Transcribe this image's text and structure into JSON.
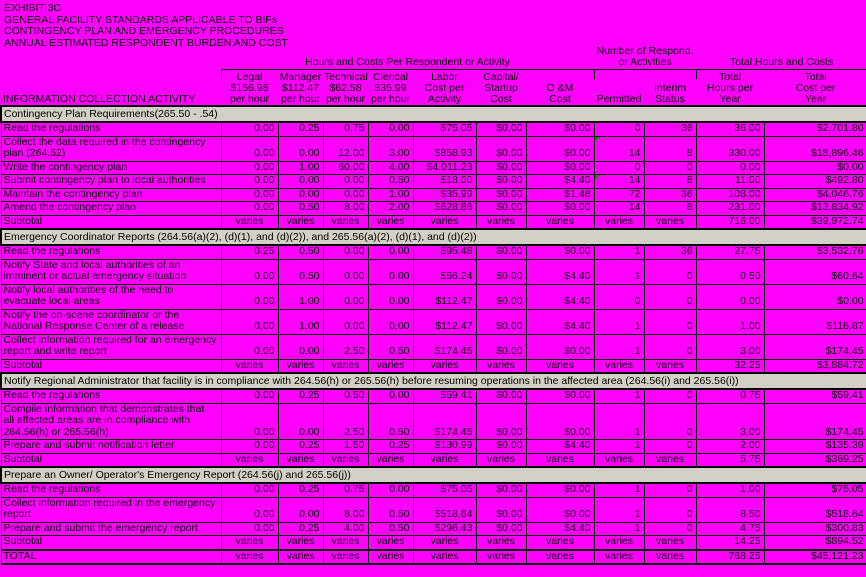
{
  "title_lines": [
    "EXHIBIT 3C",
    "GENERAL FACILITY STANDARDS APPLICABLE TO BIFs",
    "CONTINGENCY PLAN AND EMERGENCY PROCEDURES",
    "ANNUAL ESTIMATED RESPONDENT BURDEN AND COST"
  ],
  "table": {
    "row_label_header": "INFORMATION COLLECTION ACTIVITY",
    "group_headers": [
      {
        "line1": "Hours and Costs Per Respondent or Activity",
        "line2": ""
      },
      {
        "line1": "Number of Respond.",
        "line2": "or Activities"
      },
      {
        "line1": "Total Hours and Costs",
        "line2": ""
      }
    ],
    "columns": [
      {
        "lines": [
          "Legal",
          "$156.98",
          "per hour"
        ]
      },
      {
        "lines": [
          "Manager",
          "$112.47",
          "per hour"
        ]
      },
      {
        "lines": [
          "Technical",
          "$62.58",
          "per hour"
        ]
      },
      {
        "lines": [
          "Clerical",
          "$35.99",
          "per hour"
        ]
      },
      {
        "lines": [
          "Labor",
          "Cost per",
          "Activity"
        ]
      },
      {
        "lines": [
          "Capital/",
          "Startup",
          "Cost"
        ]
      },
      {
        "lines": [
          "O &M",
          "Cost"
        ]
      },
      {
        "lines": [
          "Permitted"
        ]
      },
      {
        "lines": [
          "Interim",
          "Status"
        ]
      },
      {
        "lines": [
          "Total",
          "Hours per",
          "Year"
        ]
      },
      {
        "lines": [
          "Total",
          "Cost per",
          "Year"
        ]
      }
    ],
    "sections": [
      {
        "header": "Contingency Plan Requirements(265.50 - .54)",
        "rows": [
          {
            "label": "Read the regulations",
            "values": [
              "0.00",
              "0.25",
              "0.75",
              "0.00",
              "$75.05",
              "$0.00",
              "$0.00",
              "0",
              "36",
              "36.00",
              "$2,701.80"
            ]
          },
          {
            "label": "Collect the data required in the contingency plan (264.52)",
            "flag_col": 7,
            "values": [
              "0.00",
              "0.00",
              "12.00",
              "3.00",
              "$858.93",
              "$0.00",
              "$0.00",
              "14",
              "8",
              "330.00",
              "$18,896.46"
            ]
          },
          {
            "label": "Write the contingency plan",
            "values": [
              "0.00",
              "1.00",
              "60.00",
              "4.00",
              "$4,011.23",
              "$0.00",
              "$0.00",
              "0",
              "0",
              "0.00",
              "$0.00"
            ]
          },
          {
            "label": "Submit contingency plan to local authorities",
            "flag_col": 7,
            "values": [
              "0.00",
              "0.00",
              "0.00",
              "0.50",
              "$18.00",
              "$0.00",
              "$4.40",
              "14",
              "8",
              "11.00",
              "$492.80"
            ]
          },
          {
            "label": "Maintain the contingency plan",
            "values": [
              "0.00",
              "0.00",
              "0.00",
              "1.00",
              "$35.99",
              "$0.00",
              "$1.48",
              "72",
              "36",
              "108.00",
              "$4,046.76"
            ]
          },
          {
            "label": "Amend the contingency plan",
            "values": [
              "0.00",
              "0.50",
              "8.00",
              "2.00",
              "$628.86",
              "$0.00",
              "$0.00",
              "14",
              "8",
              "231.00",
              "$13,834.92"
            ]
          },
          {
            "label": "Subtotal",
            "kind": "sum",
            "values": [
              "varies",
              "varies",
              "varies",
              "varies",
              "varies",
              "varies",
              "varies",
              "varies",
              "varies",
              "716.00",
              "$39,972.74"
            ]
          }
        ]
      },
      {
        "header": "Emergency Coordinator Reports (264.56(a)(2), (d)(1), and (d)(2)), and 265.56(a)(2), (d)(1), and (d)(2))",
        "rows": [
          {
            "label": "Read the regulations",
            "values": [
              "0.25",
              "0.50",
              "0.00",
              "0.00",
              "$95.48",
              "$0.00",
              "$0.00",
              "1",
              "36",
              "27.75",
              "$3,532.76"
            ]
          },
          {
            "label": "Notify State and local authorities of an imminent or actual emergency situation",
            "values": [
              "0.00",
              "0.50",
              "0.00",
              "0.00",
              "$56.24",
              "$0.00",
              "$4.40",
              "1",
              "0",
              "0.50",
              "$60.64"
            ]
          },
          {
            "label": "Notify local authorities of the need to evacuate local areas",
            "values": [
              "0.00",
              "1.00",
              "0.00",
              "0.00",
              "$112.47",
              "$0.00",
              "$4.40",
              "0",
              "0",
              "0.00",
              "$0.00"
            ]
          },
          {
            "label": "Notify the on-scene coordinator or the National Response Center of a release",
            "values": [
              "0.00",
              "1.00",
              "0.00",
              "0.00",
              "$112.47",
              "$0.00",
              "$4.40",
              "1",
              "0",
              "1.00",
              "$116.87"
            ]
          },
          {
            "label": "Collect information required for an emergency report and write report",
            "values": [
              "0.00",
              "0.00",
              "2.50",
              "0.50",
              "$174.45",
              "$0.00",
              "$0.00",
              "1",
              "0",
              "3.00",
              "$174.45"
            ]
          },
          {
            "label": "Subtotal",
            "kind": "sum",
            "values": [
              "varies",
              "varies",
              "varies",
              "varies",
              "varies",
              "varies",
              "varies",
              "varies",
              "varies",
              "32.25",
              "$3,884.72"
            ]
          }
        ]
      },
      {
        "header": "Notify Regional Administrator that facility is in compliance with 264.56(h) or 265.56(h) before resuming operations in the affected area (264.56(i) and 265.56(i))",
        "rows": [
          {
            "label": "Read the regulations",
            "values": [
              "0.00",
              "0.25",
              "0.50",
              "0.00",
              "$59.41",
              "$0.00",
              "$0.00",
              "1",
              "0",
              "0.75",
              "$59.41"
            ]
          },
          {
            "label": "Compile information that demonstrates that all affected areas are in compliance with 264.56(h) or 265.56(h)",
            "values": [
              "0.00",
              "0.00",
              "2.50",
              "0.50",
              "$174.45",
              "$0.00",
              "$0.00",
              "1",
              "0",
              "3.00",
              "$174.45"
            ]
          },
          {
            "label": "Prepare and submit notification letter",
            "values": [
              "0.00",
              "0.25",
              "1.50",
              "0.25",
              "$130.99",
              "$0.00",
              "$4.40",
              "1",
              "0",
              "2.00",
              "$135.39"
            ]
          },
          {
            "label": "Subtotal",
            "kind": "sum",
            "values": [
              "varies",
              "varies",
              "varies",
              "varies",
              "varies",
              "varies",
              "varies",
              "varies",
              "varies",
              "5.75",
              "$369.25"
            ]
          }
        ]
      },
      {
        "header": "Prepare an Owner/ Operator's Emergency Report (264.56(j) and 265.56(j))",
        "rows": [
          {
            "label": "Read the regulations",
            "values": [
              "0.00",
              "0.25",
              "0.75",
              "0.00",
              "$75.05",
              "$0.00",
              "$0.00",
              "1",
              "0",
              "1.00",
              "$75.05"
            ]
          },
          {
            "label": "Collect information required in the emergency report",
            "values": [
              "0.00",
              "0.00",
              "8.00",
              "0.50",
              "$518.64",
              "$0.00",
              "$0.00",
              "1",
              "0",
              "8.50",
              "$518.64"
            ]
          },
          {
            "label": "Prepare and submit the emergency report",
            "values": [
              "0.00",
              "0.25",
              "4.00",
              "0.50",
              "$296.43",
              "$0.00",
              "$4.40",
              "1",
              "0",
              "4.75",
              "$300.83"
            ]
          },
          {
            "label": "Subtotal",
            "kind": "sum",
            "values": [
              "varies",
              "varies",
              "varies",
              "varies",
              "varies",
              "varies",
              "varies",
              "varies",
              "varies",
              "14.25",
              "$894.52"
            ]
          }
        ]
      }
    ],
    "total_row": {
      "label": "TOTAL",
      "kind": "total",
      "values": [
        "varies",
        "varies",
        "varies",
        "varies",
        "varies",
        "varies",
        "varies",
        "varies",
        "varies",
        "768.25",
        "$45,121.23"
      ]
    }
  },
  "colors": {
    "page_background": "#FF00FF",
    "section_bar": "#D4D0C8",
    "flag_triangle": "#009000",
    "text": "#000000"
  }
}
